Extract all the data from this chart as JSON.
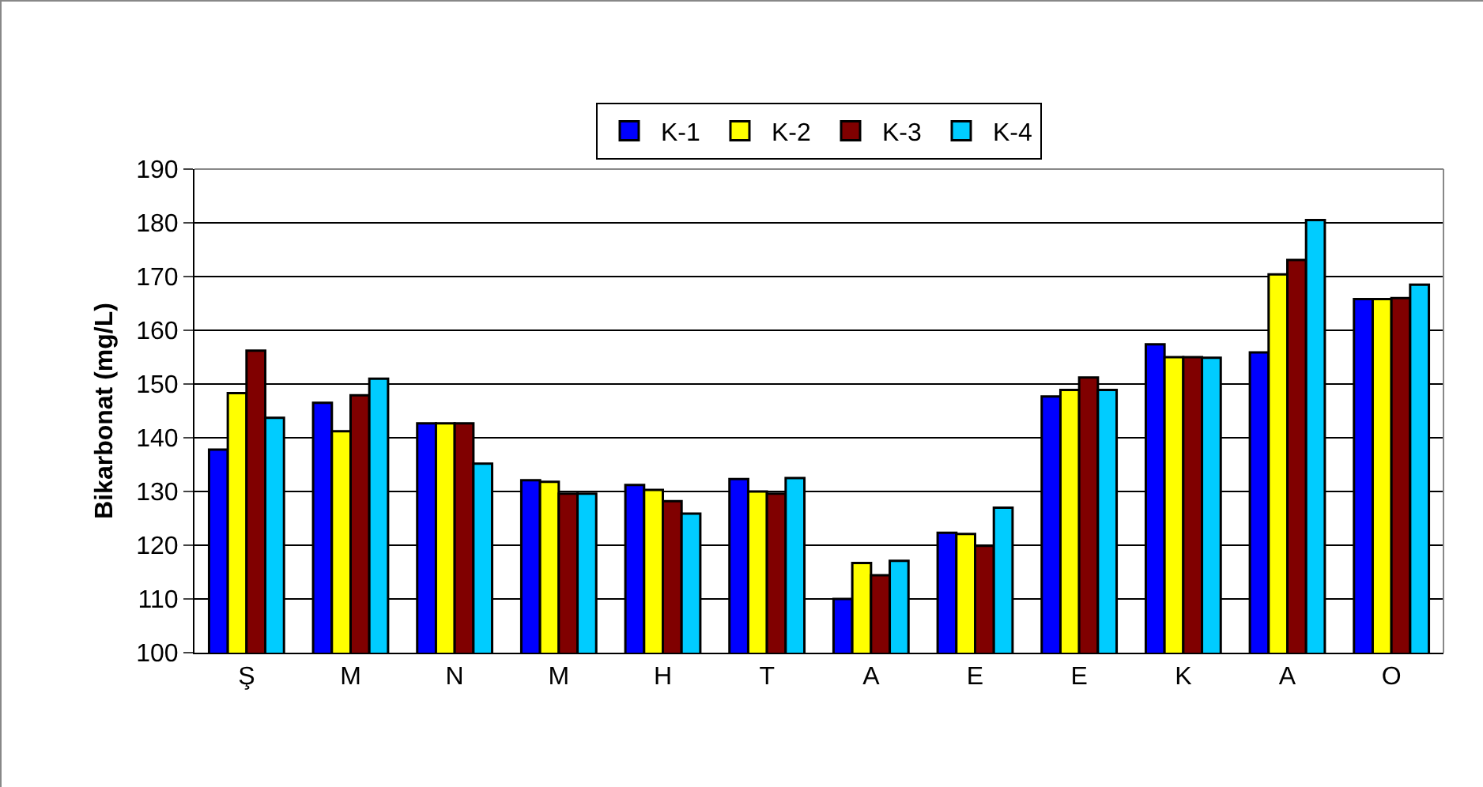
{
  "chart_data": {
    "type": "bar",
    "ylabel": "Bikarbonat (mg/L)",
    "categories": [
      "Ş",
      "M",
      "N",
      "M",
      "H",
      "T",
      "A",
      "E",
      "E",
      "K",
      "A",
      "O"
    ],
    "series": [
      {
        "name": "K-1",
        "color": "#0000ff",
        "values": [
          137.8,
          146.5,
          142.7,
          132.1,
          131.2,
          132.3,
          110,
          122.3,
          147.7,
          157.4,
          155.9,
          165.8
        ]
      },
      {
        "name": "K-2",
        "color": "#ffff00",
        "values": [
          148.3,
          141.2,
          142.7,
          131.8,
          130.3,
          130,
          116.7,
          122.1,
          148.9,
          155,
          170.4,
          165.8
        ]
      },
      {
        "name": "K-3",
        "color": "#800000",
        "values": [
          156.2,
          147.9,
          142.7,
          129.6,
          128.2,
          129.6,
          114.4,
          119.9,
          151.2,
          155,
          173.1,
          166
        ]
      },
      {
        "name": "K-4",
        "color": "#00ccff",
        "values": [
          143.7,
          151,
          135.2,
          129.6,
          125.9,
          132.5,
          117.1,
          127,
          148.9,
          154.9,
          180.5,
          168.5
        ]
      }
    ],
    "ylim": [
      100,
      190
    ],
    "yticks": [
      100,
      110,
      120,
      130,
      140,
      150,
      160,
      170,
      180,
      190
    ],
    "grid": "y",
    "legend": "top"
  }
}
